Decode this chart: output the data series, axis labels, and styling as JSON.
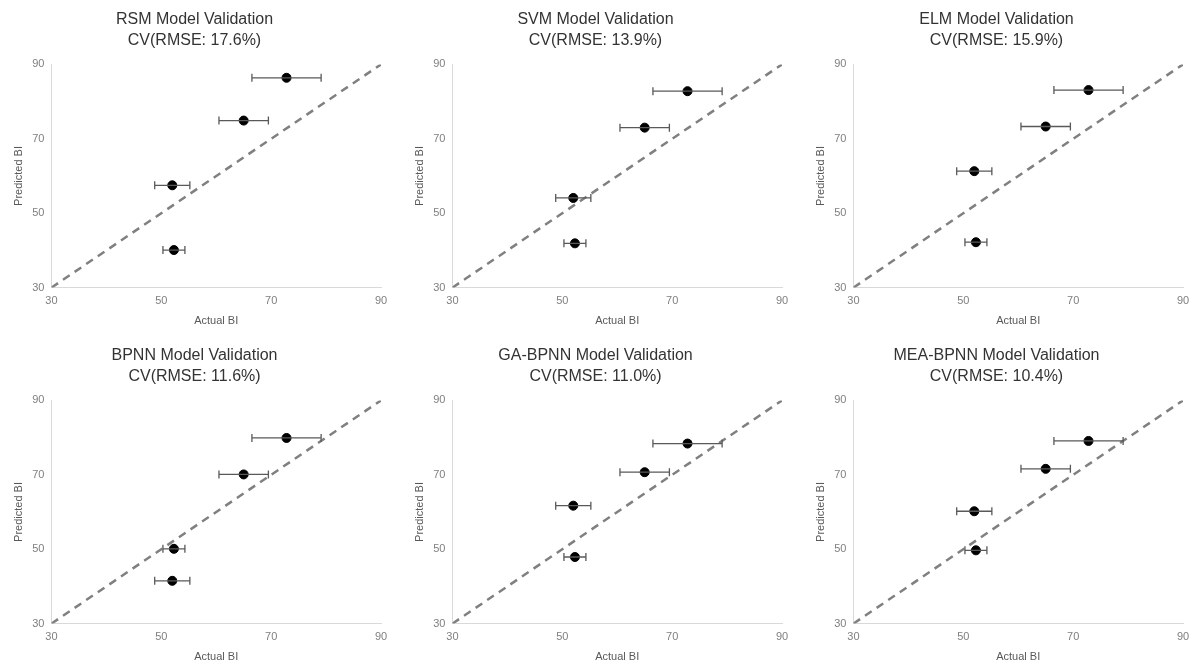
{
  "chart_data": [
    {
      "type": "scatter",
      "title": "RSM Model Validation",
      "subtitle": "CV(RMSE: 17.6%)",
      "xlabel": "Actual BI",
      "ylabel": "Predicted BI",
      "xlim": [
        30,
        90
      ],
      "ylim": [
        30,
        90
      ],
      "xticks": [
        30,
        50,
        70,
        90
      ],
      "yticks": [
        30,
        50,
        70,
        90
      ],
      "grid": false,
      "legend": false,
      "series": [
        {
          "type": "scatter",
          "color": "#000000",
          "marker": "circle",
          "x": [
            72.8,
            65,
            52,
            52.3
          ],
          "values": [
            86.4,
            74.9,
            57.5,
            40.1
          ],
          "xerrors": [
            6.3,
            4.5,
            3.2,
            2
          ]
        },
        {
          "type": "line",
          "color": "#808080",
          "marker": "none",
          "line_style": "dashed",
          "x": [
            30,
            90
          ],
          "values": [
            30,
            90
          ]
        }
      ]
    },
    {
      "type": "scatter",
      "title": "SVM Model Validation",
      "subtitle": "CV(RMSE: 13.9%)",
      "xlabel": "Actual BI",
      "ylabel": "Predicted BI",
      "xlim": [
        30,
        90
      ],
      "ylim": [
        30,
        90
      ],
      "xticks": [
        30,
        50,
        70,
        90
      ],
      "yticks": [
        30,
        50,
        70,
        90
      ],
      "grid": false,
      "legend": false,
      "series": [
        {
          "type": "scatter",
          "color": "#000000",
          "marker": "circle",
          "x": [
            72.8,
            65,
            52,
            52.3
          ],
          "values": [
            82.8,
            73,
            54.1,
            41.9
          ],
          "xerrors": [
            6.3,
            4.5,
            3.2,
            2
          ]
        },
        {
          "type": "line",
          "color": "#808080",
          "marker": "none",
          "line_style": "dashed",
          "x": [
            30,
            90
          ],
          "values": [
            30,
            90
          ]
        }
      ]
    },
    {
      "type": "scatter",
      "title": "ELM Model Validation",
      "subtitle": "CV(RMSE: 15.9%)",
      "xlabel": "Actual BI",
      "ylabel": "Predicted BI",
      "xlim": [
        30,
        90
      ],
      "ylim": [
        30,
        90
      ],
      "xticks": [
        30,
        50,
        70,
        90
      ],
      "yticks": [
        30,
        50,
        70,
        90
      ],
      "grid": false,
      "legend": false,
      "series": [
        {
          "type": "scatter",
          "color": "#000000",
          "marker": "circle",
          "x": [
            72.8,
            65,
            52,
            52.3
          ],
          "values": [
            83.1,
            73.3,
            61.3,
            42.2
          ],
          "xerrors": [
            6.3,
            4.5,
            3.2,
            2
          ]
        },
        {
          "type": "line",
          "color": "#808080",
          "marker": "none",
          "line_style": "dashed",
          "x": [
            30,
            90
          ],
          "values": [
            30,
            90
          ]
        }
      ]
    },
    {
      "type": "scatter",
      "title": "BPNN Model Validation",
      "subtitle": "CV(RMSE: 11.6%)",
      "xlabel": "Actual BI",
      "ylabel": "Predicted BI",
      "xlim": [
        30,
        90
      ],
      "ylim": [
        30,
        90
      ],
      "xticks": [
        30,
        50,
        70,
        90
      ],
      "yticks": [
        30,
        50,
        70,
        90
      ],
      "grid": false,
      "legend": false,
      "series": [
        {
          "type": "scatter",
          "color": "#000000",
          "marker": "circle",
          "x": [
            72.8,
            65,
            52.3,
            52
          ],
          "values": [
            79.9,
            70.1,
            50.1,
            41.5
          ],
          "xerrors": [
            6.3,
            4.5,
            2,
            3.2
          ]
        },
        {
          "type": "line",
          "color": "#808080",
          "marker": "none",
          "line_style": "dashed",
          "x": [
            30,
            90
          ],
          "values": [
            30,
            90
          ]
        }
      ]
    },
    {
      "type": "scatter",
      "title": "GA-BPNN Model Validation",
      "subtitle": "CV(RMSE: 11.0%)",
      "xlabel": "Actual BI",
      "ylabel": "Predicted BI",
      "xlim": [
        30,
        90
      ],
      "ylim": [
        30,
        90
      ],
      "xticks": [
        30,
        50,
        70,
        90
      ],
      "yticks": [
        30,
        50,
        70,
        90
      ],
      "grid": false,
      "legend": false,
      "series": [
        {
          "type": "scatter",
          "color": "#000000",
          "marker": "circle",
          "x": [
            72.8,
            65,
            52,
            52.3
          ],
          "values": [
            78.4,
            70.7,
            61.7,
            47.9
          ],
          "xerrors": [
            6.3,
            4.5,
            3.2,
            2
          ]
        },
        {
          "type": "line",
          "color": "#808080",
          "marker": "none",
          "line_style": "dashed",
          "x": [
            30,
            90
          ],
          "values": [
            30,
            90
          ]
        }
      ]
    },
    {
      "type": "scatter",
      "title": "MEA-BPNN Model Validation",
      "subtitle": "CV(RMSE: 10.4%)",
      "xlabel": "Actual BI",
      "ylabel": "Predicted BI",
      "xlim": [
        30,
        90
      ],
      "ylim": [
        30,
        90
      ],
      "xticks": [
        30,
        50,
        70,
        90
      ],
      "yticks": [
        30,
        50,
        70,
        90
      ],
      "grid": false,
      "legend": false,
      "series": [
        {
          "type": "scatter",
          "color": "#000000",
          "marker": "circle",
          "x": [
            72.8,
            65,
            52,
            52.3
          ],
          "values": [
            79.1,
            71.6,
            60.2,
            49.7
          ],
          "xerrors": [
            6.3,
            4.5,
            3.2,
            2
          ]
        },
        {
          "type": "line",
          "color": "#808080",
          "marker": "none",
          "line_style": "dashed",
          "x": [
            30,
            90
          ],
          "values": [
            30,
            90
          ]
        }
      ]
    }
  ]
}
